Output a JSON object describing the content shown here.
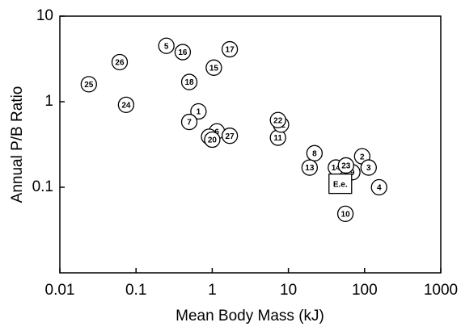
{
  "chart_data": {
    "type": "scatter",
    "x_label": "Mean Body Mass (kJ)",
    "y_label": "Annual P/B Ratio",
    "labels": [
      "1",
      "2",
      "3",
      "4",
      "5",
      "6",
      "7",
      "8",
      "9",
      "10",
      "11",
      "12",
      "13",
      "14",
      "15",
      "16",
      "17",
      "18",
      "19",
      "20",
      "22",
      "23",
      "24",
      "25",
      "26",
      "27"
    ],
    "x": [
      0.66,
      93,
      113,
      155,
      0.25,
      1.15,
      0.5,
      22,
      69,
      56,
      7.3,
      8,
      19,
      42,
      1.05,
      0.41,
      1.7,
      0.5,
      0.91,
      1.0,
      7.3,
      57,
      0.074,
      0.024,
      0.061,
      1.7
    ],
    "y": [
      0.77,
      0.23,
      0.17,
      0.1,
      4.5,
      0.45,
      0.58,
      0.25,
      0.15,
      0.049,
      0.38,
      0.54,
      0.17,
      0.17,
      2.5,
      3.8,
      4.1,
      1.7,
      0.39,
      0.36,
      0.61,
      0.18,
      0.92,
      1.6,
      2.9,
      0.4
    ],
    "reference": {
      "label": "E.e.",
      "x": 48,
      "y": 0.11
    },
    "xscale": "log",
    "yscale": "log",
    "xlim": [
      0.01,
      1000
    ],
    "ylim": [
      0.01,
      10
    ],
    "xticks": [
      0.01,
      0.1,
      1,
      10,
      100,
      1000
    ],
    "yticks": [
      0.1,
      1,
      10
    ]
  }
}
